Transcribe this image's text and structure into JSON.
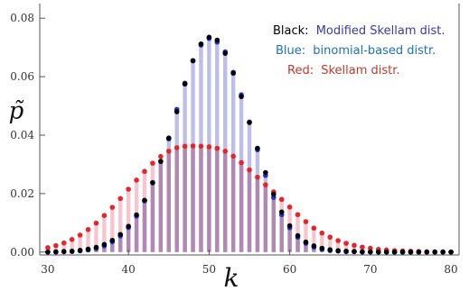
{
  "chart_data": {
    "type": "scatter",
    "xlabel": "k",
    "ylabel": "p̃",
    "xlim": [
      29,
      81
    ],
    "ylim": [
      -0.001,
      0.085
    ],
    "x_ticks": [
      30,
      40,
      50,
      60,
      70,
      80
    ],
    "y_ticks": [
      0.0,
      0.02,
      0.04,
      0.06,
      0.08
    ],
    "x_tick_labels": [
      "30",
      "40",
      "50",
      "60",
      "70",
      "80"
    ],
    "y_tick_labels": [
      "0.00",
      "0.02",
      "0.04",
      "0.06",
      "0.08"
    ],
    "grid": false,
    "legend_position": "top-right",
    "legend": [
      {
        "label": "Black:",
        "text": "Modified Skellam dist.",
        "label_color": "#000000",
        "text_color": "#3a3aa6"
      },
      {
        "label": "Blue:",
        "text": "binomial-based distr.",
        "label_color": "#1f6fc0",
        "text_color": "#1f6fc0"
      },
      {
        "label": "Red:",
        "text": "Skellam distr.",
        "label_color": "#c0392b",
        "text_color": "#c0392b"
      }
    ],
    "x": [
      30,
      31,
      32,
      33,
      34,
      35,
      36,
      37,
      38,
      39,
      40,
      41,
      42,
      43,
      44,
      45,
      46,
      47,
      48,
      49,
      50,
      51,
      52,
      53,
      54,
      55,
      56,
      57,
      58,
      59,
      60,
      61,
      62,
      63,
      64,
      65,
      66,
      67,
      68,
      69,
      70,
      71,
      72,
      73,
      74,
      75,
      76,
      77,
      78,
      79,
      80
    ],
    "series": [
      {
        "color": "#e8232a",
        "bar_color": "#f5bcc8",
        "values": [
          0.0015,
          0.0022,
          0.0031,
          0.0043,
          0.0058,
          0.0077,
          0.0099,
          0.0125,
          0.0153,
          0.0183,
          0.0215,
          0.0246,
          0.0276,
          0.0304,
          0.0327,
          0.0345,
          0.0357,
          0.0362,
          0.0363,
          0.0362,
          0.036,
          0.0355,
          0.0345,
          0.0328,
          0.0306,
          0.0281,
          0.0256,
          0.023,
          0.0206,
          0.018,
          0.0154,
          0.0128,
          0.0104,
          0.0082,
          0.0065,
          0.0051,
          0.0039,
          0.003,
          0.0023,
          0.0017,
          0.0013,
          0.0009,
          0.0007,
          0.0005,
          0.0004,
          0.0003,
          0.0002,
          0.0001,
          0.0001,
          0.0001,
          0.0
        ]
      },
      {
        "color": "#1f2fd8",
        "bar_color": "#b7b7e8",
        "values": [
          0.0,
          0.0,
          0.0001,
          0.0002,
          0.0004,
          0.0007,
          0.0012,
          0.0021,
          0.0035,
          0.0055,
          0.0084,
          0.0123,
          0.0175,
          0.0238,
          0.031,
          0.0387,
          0.0488,
          0.0578,
          0.0654,
          0.0708,
          0.0731,
          0.0718,
          0.0685,
          0.0615,
          0.0538,
          0.0445,
          0.035,
          0.0262,
          0.0187,
          0.0128,
          0.0083,
          0.0051,
          0.003,
          0.0017,
          0.0009,
          0.0005,
          0.0003,
          0.0001,
          0.0001,
          0.0,
          0.0,
          0.0,
          0.0,
          0.0,
          0.0,
          0.0,
          0.0,
          0.0,
          0.0,
          0.0,
          0.0
        ]
      },
      {
        "color": "#000000",
        "bar_color": "#b7b7e8",
        "values": [
          0.0,
          0.0001,
          0.0002,
          0.0003,
          0.0006,
          0.001,
          0.0016,
          0.0026,
          0.004,
          0.006,
          0.0088,
          0.0127,
          0.0177,
          0.0237,
          0.031,
          0.039,
          0.048,
          0.0575,
          0.0655,
          0.0712,
          0.0735,
          0.0725,
          0.068,
          0.0612,
          0.0532,
          0.0443,
          0.0355,
          0.0272,
          0.0198,
          0.0137,
          0.009,
          0.0056,
          0.0034,
          0.0021,
          0.0013,
          0.0008,
          0.0005,
          0.0003,
          0.0002,
          0.0001,
          0.0001,
          0.0,
          0.0,
          0.0,
          0.0,
          0.0,
          0.0,
          0.0,
          0.0,
          0.0,
          0.0
        ]
      }
    ]
  }
}
